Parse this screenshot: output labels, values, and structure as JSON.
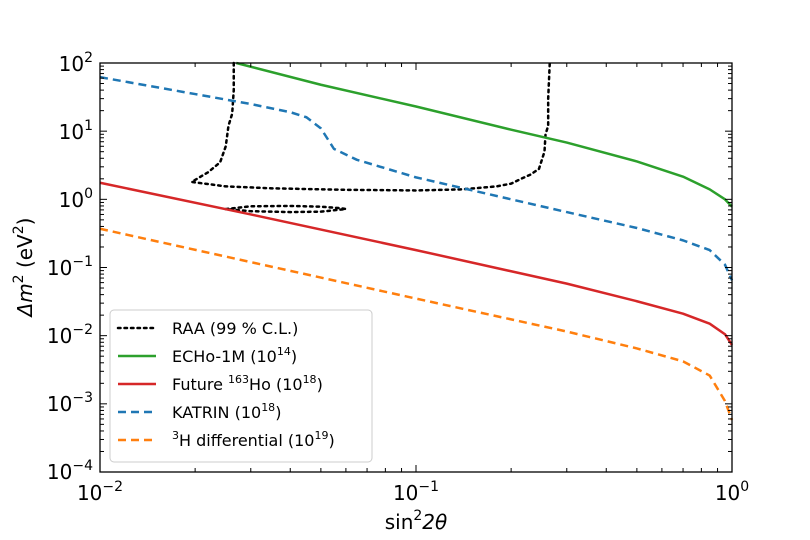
{
  "chart_data": {
    "type": "line",
    "title": "",
    "xlabel_main": "sin",
    "xlabel_sup": "2",
    "xlabel_tail": "2θ",
    "ylabel_main": "Δm",
    "ylabel_sup": "2",
    "ylabel_unit_open": " (eV",
    "ylabel_unit_sup": "2",
    "ylabel_unit_close": ")",
    "x_scale": "log",
    "y_scale": "log",
    "xlim": [
      0.01,
      1
    ],
    "ylim": [
      0.0001,
      100
    ],
    "grid": false,
    "legend_position": "lower-left",
    "x_ticks": [
      {
        "base": "10",
        "exp": "−2",
        "value": 0.01
      },
      {
        "base": "10",
        "exp": "−1",
        "value": 0.1
      },
      {
        "base": "10",
        "exp": "0",
        "value": 1
      }
    ],
    "y_ticks": [
      {
        "base": "10",
        "exp": "−4",
        "value": 0.0001
      },
      {
        "base": "10",
        "exp": "−3",
        "value": 0.001
      },
      {
        "base": "10",
        "exp": "−2",
        "value": 0.01
      },
      {
        "base": "10",
        "exp": "−1",
        "value": 0.1
      },
      {
        "base": "10",
        "exp": "0",
        "value": 1
      },
      {
        "base": "10",
        "exp": "1",
        "value": 10
      },
      {
        "base": "10",
        "exp": "2",
        "value": 100
      }
    ],
    "series": [
      {
        "name": "RAA (99 % C.L.)",
        "color": "#000000",
        "style": "dotted",
        "segments": [
          [
            [
              0.0265,
              100
            ],
            [
              0.0265,
              40
            ],
            [
              0.0262,
              18
            ],
            [
              0.0255,
              12
            ],
            [
              0.025,
              6
            ],
            [
              0.024,
              3.5
            ],
            [
              0.022,
              2.5
            ],
            [
              0.0195,
              1.8
            ],
            [
              0.025,
              1.55
            ],
            [
              0.035,
              1.45
            ],
            [
              0.06,
              1.38
            ],
            [
              0.1,
              1.35
            ],
            [
              0.14,
              1.4
            ],
            [
              0.18,
              1.55
            ],
            [
              0.2,
              1.7
            ],
            [
              0.215,
              2.0
            ],
            [
              0.23,
              2.3
            ],
            [
              0.245,
              2.8
            ],
            [
              0.255,
              5
            ],
            [
              0.257,
              9
            ],
            [
              0.262,
              12
            ],
            [
              0.262,
              30
            ],
            [
              0.265,
              100
            ]
          ],
          [
            [
              0.025,
              0.72
            ],
            [
              0.03,
              0.79
            ],
            [
              0.04,
              0.8
            ],
            [
              0.05,
              0.78
            ],
            [
              0.058,
              0.74
            ],
            [
              0.06,
              0.72
            ],
            [
              0.05,
              0.66
            ],
            [
              0.04,
              0.65
            ],
            [
              0.03,
              0.67
            ],
            [
              0.025,
              0.72
            ]
          ]
        ]
      },
      {
        "name": "ECHo-1M",
        "exp": "14",
        "color": "#2ca02c",
        "style": "solid",
        "segments": [
          [
            [
              0.027,
              100
            ],
            [
              0.05,
              48
            ],
            [
              0.1,
              23
            ],
            [
              0.2,
              10.5
            ],
            [
              0.3,
              6.8
            ],
            [
              0.5,
              3.6
            ],
            [
              0.7,
              2.15
            ],
            [
              0.85,
              1.4
            ],
            [
              0.95,
              1.0
            ],
            [
              1.0,
              0.78
            ]
          ]
        ]
      },
      {
        "name": "Future",
        "iso": "163",
        "suffix": "Ho",
        "exp": "18",
        "color": "#d62728",
        "style": "solid",
        "segments": [
          [
            [
              0.01,
              1.75
            ],
            [
              0.03,
              0.6
            ],
            [
              0.1,
              0.18
            ],
            [
              0.3,
              0.058
            ],
            [
              0.5,
              0.032
            ],
            [
              0.7,
              0.021
            ],
            [
              0.85,
              0.015
            ],
            [
              0.95,
              0.0105
            ],
            [
              1.0,
              0.0073
            ]
          ]
        ]
      },
      {
        "name": "KATRIN",
        "exp": "18",
        "color": "#1f77b4",
        "style": "dashed",
        "segments": [
          [
            [
              0.01,
              62
            ],
            [
              0.02,
              35
            ],
            [
              0.03,
              25
            ],
            [
              0.04,
              19
            ],
            [
              0.045,
              16
            ],
            [
              0.05,
              11
            ],
            [
              0.055,
              5.5
            ],
            [
              0.065,
              3.8
            ],
            [
              0.1,
              2.1
            ],
            [
              0.2,
              1.0
            ],
            [
              0.3,
              0.65
            ],
            [
              0.5,
              0.38
            ],
            [
              0.7,
              0.25
            ],
            [
              0.85,
              0.18
            ],
            [
              0.95,
              0.11
            ],
            [
              1.0,
              0.065
            ]
          ]
        ]
      },
      {
        "name": "H differential",
        "iso": "3",
        "exp": "19",
        "color": "#ff7f0e",
        "style": "dashed",
        "segments": [
          [
            [
              0.01,
              0.37
            ],
            [
              0.03,
              0.12
            ],
            [
              0.1,
              0.035
            ],
            [
              0.3,
              0.0115
            ],
            [
              0.5,
              0.0065
            ],
            [
              0.7,
              0.0042
            ],
            [
              0.85,
              0.0026
            ],
            [
              0.95,
              0.0011
            ],
            [
              1.0,
              0.00058
            ]
          ]
        ]
      }
    ]
  }
}
